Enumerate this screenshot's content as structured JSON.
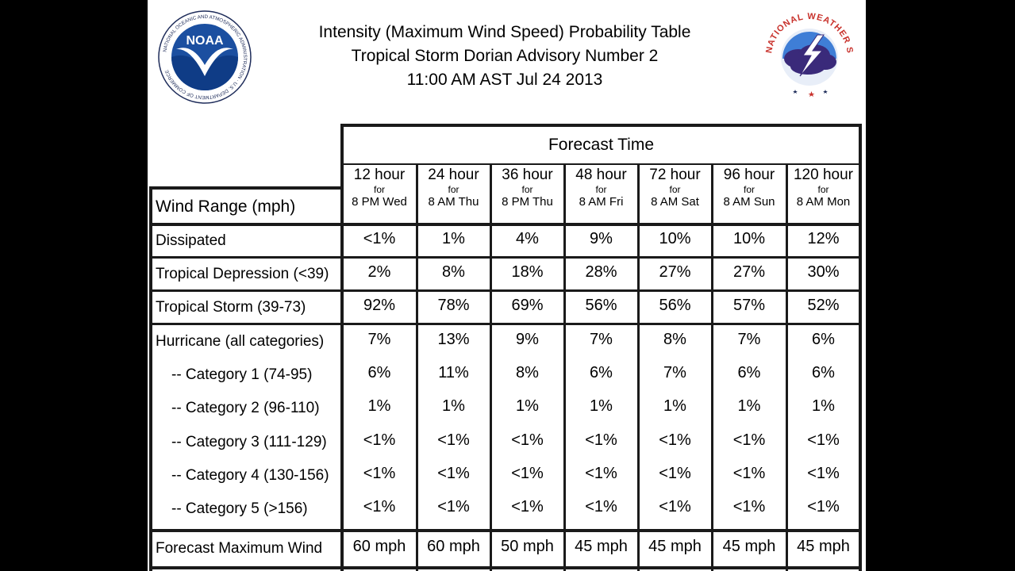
{
  "title_lines": [
    "Intensity (Maximum Wind Speed) Probability Table",
    "Tropical Storm Dorian Advisory Number 2",
    "11:00 AM AST Jul 24 2013"
  ],
  "logos": {
    "noaa_text": "NOAA",
    "noaa_ring": "NATIONAL OCEANIC AND ATMOSPHERIC ADMINISTRATION · U.S. DEPARTMENT OF COMMERCE",
    "nws_ring": "NATIONAL WEATHER SERVICE"
  },
  "table": {
    "forecast_time_label": "Forecast Time",
    "wind_range_label": "Wind Range (mph)",
    "columns": [
      {
        "hour": "12 hour",
        "for": "for",
        "when": "8 PM Wed"
      },
      {
        "hour": "24 hour",
        "for": "for",
        "when": "8 AM Thu"
      },
      {
        "hour": "36 hour",
        "for": "for",
        "when": "8 PM Thu"
      },
      {
        "hour": "48 hour",
        "for": "for",
        "when": "8 AM Fri"
      },
      {
        "hour": "72 hour",
        "for": "for",
        "when": "8 AM Sat"
      },
      {
        "hour": "96 hour",
        "for": "for",
        "when": "8 AM Sun"
      },
      {
        "hour": "120 hour",
        "for": "for",
        "when": "8 AM Mon"
      }
    ],
    "rows": [
      {
        "label": "Dissipated",
        "values": [
          "<1%",
          "1%",
          "4%",
          "9%",
          "10%",
          "10%",
          "12%"
        ]
      },
      {
        "label": "Tropical Depression (<39)",
        "values": [
          "2%",
          "8%",
          "18%",
          "28%",
          "27%",
          "27%",
          "30%"
        ]
      },
      {
        "label": "Tropical Storm (39-73)",
        "values": [
          "92%",
          "78%",
          "69%",
          "56%",
          "56%",
          "57%",
          "52%"
        ]
      },
      {
        "label": "Hurricane (all categories)",
        "values": [
          "7%",
          "13%",
          "9%",
          "7%",
          "8%",
          "7%",
          "6%"
        ]
      },
      {
        "label": "-- Category 1 (74-95)",
        "values": [
          "6%",
          "11%",
          "8%",
          "6%",
          "7%",
          "6%",
          "6%"
        ]
      },
      {
        "label": "-- Category 2 (96-110)",
        "values": [
          "1%",
          "1%",
          "1%",
          "1%",
          "1%",
          "1%",
          "1%"
        ]
      },
      {
        "label": "-- Category 3 (111-129)",
        "values": [
          "<1%",
          "<1%",
          "<1%",
          "<1%",
          "<1%",
          "<1%",
          "<1%"
        ]
      },
      {
        "label": "-- Category 4 (130-156)",
        "values": [
          "<1%",
          "<1%",
          "<1%",
          "<1%",
          "<1%",
          "<1%",
          "<1%"
        ]
      },
      {
        "label": "-- Category 5 (>156)",
        "values": [
          "<1%",
          "<1%",
          "<1%",
          "<1%",
          "<1%",
          "<1%",
          "<1%"
        ]
      },
      {
        "label": "Forecast Maximum Wind",
        "values": [
          "60 mph",
          "60 mph",
          "50 mph",
          "45 mph",
          "45 mph",
          "45 mph",
          "45 mph"
        ]
      }
    ]
  }
}
